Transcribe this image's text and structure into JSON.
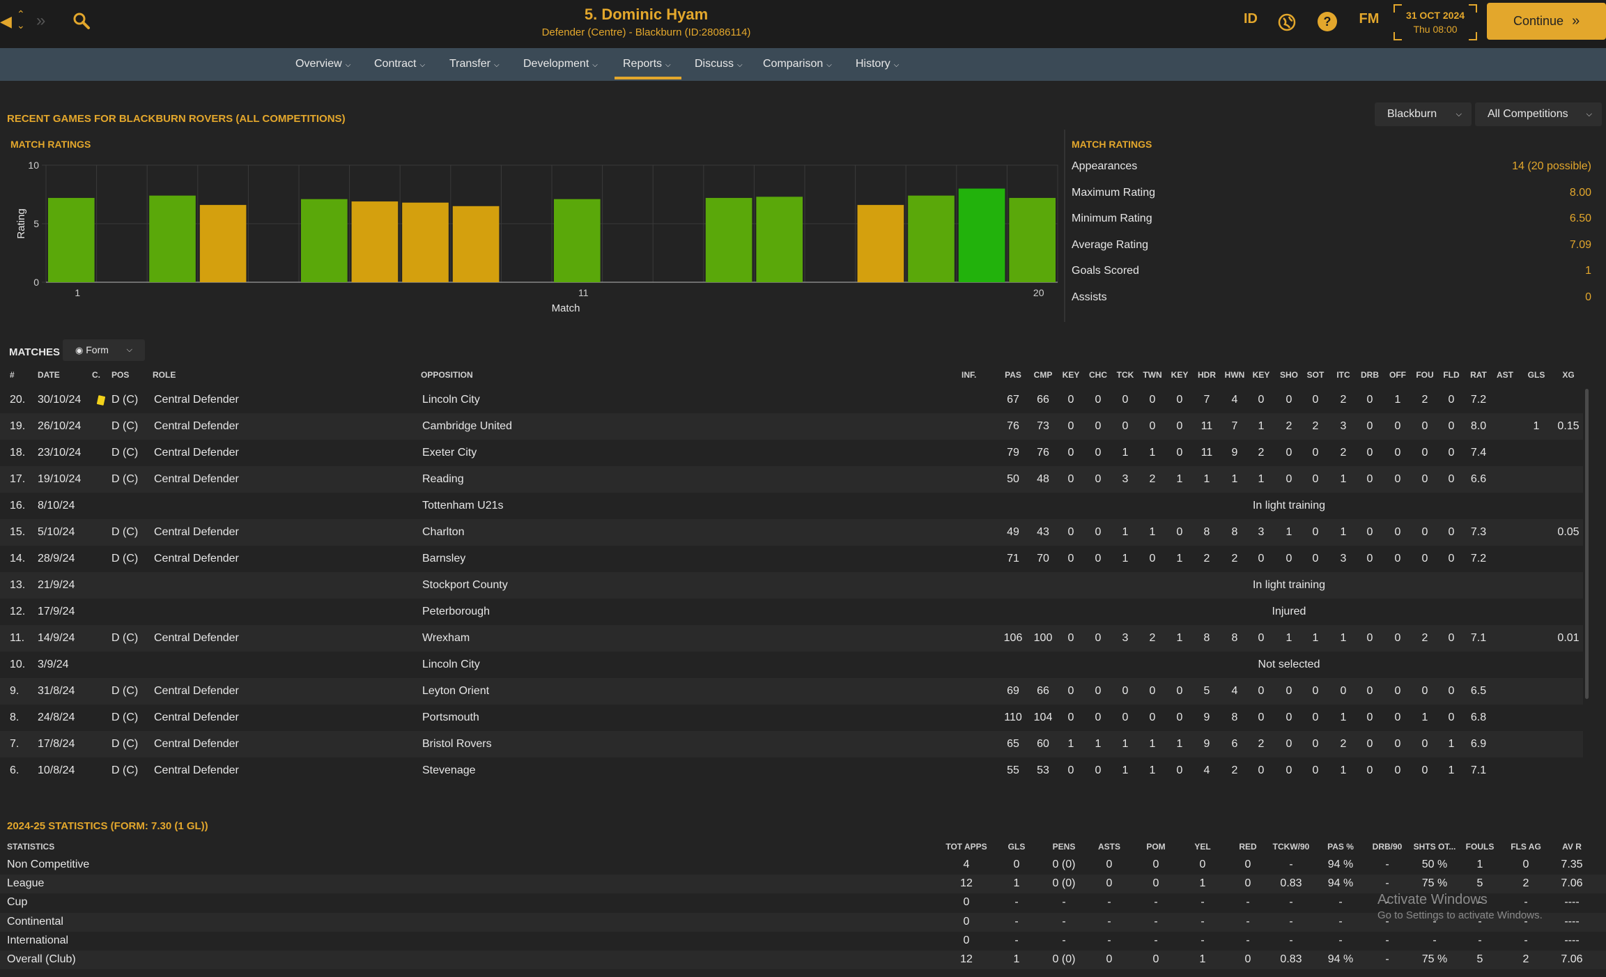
{
  "header": {
    "title": "5. Dominic Hyam",
    "subtitle": "Defender (Centre) - Blackburn (ID:28086114)",
    "date": "31 OCT 2024",
    "time": "Thu 08:00",
    "continue_label": "Continue",
    "id_label": "ID",
    "fm_label": "FM",
    "help_label": "?"
  },
  "nav": [
    "Overview",
    "Contract",
    "Transfer",
    "Development",
    "Reports",
    "Discuss",
    "Comparison",
    "History"
  ],
  "nav_active": "Reports",
  "section_title": "RECENT GAMES FOR BLACKBURN ROVERS (ALL COMPETITIONS)",
  "dropdowns": {
    "club": "Blackburn",
    "competition": "All Competitions"
  },
  "chart_title": "MATCH RATINGS",
  "chart_data": {
    "type": "bar",
    "title": "MATCH RATINGS",
    "xlabel": "Match",
    "ylabel": "Rating",
    "ylim": [
      0,
      10
    ],
    "yticks": [
      0,
      5,
      10
    ],
    "xticks": [
      1,
      11,
      20
    ],
    "x": [
      1,
      2,
      3,
      4,
      5,
      6,
      7,
      8,
      9,
      10,
      11,
      12,
      13,
      14,
      15,
      16,
      17,
      18,
      19,
      20
    ],
    "values": [
      7.2,
      null,
      7.4,
      6.6,
      null,
      7.1,
      6.9,
      6.8,
      6.5,
      null,
      7.1,
      null,
      null,
      7.2,
      7.3,
      null,
      6.6,
      7.4,
      8.0,
      7.2
    ],
    "colors": [
      "#5aa80a",
      null,
      "#5aa80a",
      "#d4a00e",
      null,
      "#5aa80a",
      "#d4a00e",
      "#d4a00e",
      "#d4a00e",
      null,
      "#5aa80a",
      null,
      null,
      "#5aa80a",
      "#5aa80a",
      null,
      "#d4a00e",
      "#5aa80a",
      "#22b20c",
      "#5aa80a"
    ]
  },
  "summary": {
    "title": "MATCH RATINGS",
    "items": [
      {
        "label": "Appearances",
        "value": "14 (20 possible)"
      },
      {
        "label": "Maximum Rating",
        "value": "8.00"
      },
      {
        "label": "Minimum Rating",
        "value": "6.50"
      },
      {
        "label": "Average Rating",
        "value": "7.09"
      },
      {
        "label": "Goals Scored",
        "value": "1"
      },
      {
        "label": "Assists",
        "value": "0"
      }
    ]
  },
  "matches": {
    "title": "MATCHES",
    "view_label": "Form",
    "headers": [
      "#",
      "DATE",
      "C.",
      "POS",
      "ROLE",
      "OPPOSITION",
      "INF.",
      "PAS",
      "CMP",
      "KEY",
      "CHC",
      "TCK",
      "TWN",
      "KEY",
      "HDR",
      "HWN",
      "KEY",
      "SHO",
      "SOT",
      "ITC",
      "DRB",
      "OFF",
      "FOU",
      "FLD",
      "RAT",
      "AST",
      "GLS",
      "XG"
    ],
    "rows": [
      {
        "n": "20.",
        "date": "30/10/24",
        "card": true,
        "pos": "D (C)",
        "role": "Central Defender",
        "opp": "Lincoln City",
        "s": [
          "67",
          "66",
          "0",
          "0",
          "0",
          "0",
          "0",
          "7",
          "4",
          "0",
          "0",
          "0",
          "2",
          "0",
          "1",
          "2",
          "0",
          "7.2",
          "",
          "",
          ""
        ]
      },
      {
        "n": "19.",
        "date": "26/10/24",
        "pos": "D (C)",
        "role": "Central Defender",
        "opp": "Cambridge United",
        "s": [
          "76",
          "73",
          "0",
          "0",
          "0",
          "0",
          "0",
          "11",
          "7",
          "1",
          "2",
          "2",
          "3",
          "0",
          "0",
          "0",
          "0",
          "8.0",
          "",
          "1",
          "0.15"
        ]
      },
      {
        "n": "18.",
        "date": "23/10/24",
        "pos": "D (C)",
        "role": "Central Defender",
        "opp": "Exeter City",
        "s": [
          "79",
          "76",
          "0",
          "0",
          "1",
          "1",
          "0",
          "11",
          "9",
          "2",
          "0",
          "0",
          "2",
          "0",
          "0",
          "0",
          "0",
          "7.4",
          "",
          "",
          ""
        ]
      },
      {
        "n": "17.",
        "date": "19/10/24",
        "pos": "D (C)",
        "role": "Central Defender",
        "opp": "Reading",
        "s": [
          "50",
          "48",
          "0",
          "0",
          "3",
          "2",
          "1",
          "1",
          "1",
          "1",
          "0",
          "0",
          "1",
          "0",
          "0",
          "0",
          "0",
          "6.6",
          "",
          "",
          ""
        ]
      },
      {
        "n": "16.",
        "date": "8/10/24",
        "pos": "",
        "role": "",
        "opp": "Tottenham U21s",
        "note": "In light training"
      },
      {
        "n": "15.",
        "date": "5/10/24",
        "pos": "D (C)",
        "role": "Central Defender",
        "opp": "Charlton",
        "s": [
          "49",
          "43",
          "0",
          "0",
          "1",
          "1",
          "0",
          "8",
          "8",
          "3",
          "1",
          "0",
          "1",
          "0",
          "0",
          "0",
          "0",
          "7.3",
          "",
          "",
          "0.05"
        ]
      },
      {
        "n": "14.",
        "date": "28/9/24",
        "pos": "D (C)",
        "role": "Central Defender",
        "opp": "Barnsley",
        "s": [
          "71",
          "70",
          "0",
          "0",
          "1",
          "0",
          "1",
          "2",
          "2",
          "0",
          "0",
          "0",
          "3",
          "0",
          "0",
          "0",
          "0",
          "7.2",
          "",
          "",
          ""
        ]
      },
      {
        "n": "13.",
        "date": "21/9/24",
        "pos": "",
        "role": "",
        "opp": "Stockport County",
        "note": "In light training"
      },
      {
        "n": "12.",
        "date": "17/9/24",
        "pos": "",
        "role": "",
        "opp": "Peterborough",
        "note": "Injured"
      },
      {
        "n": "11.",
        "date": "14/9/24",
        "pos": "D (C)",
        "role": "Central Defender",
        "opp": "Wrexham",
        "s": [
          "106",
          "100",
          "0",
          "0",
          "3",
          "2",
          "1",
          "8",
          "8",
          "0",
          "1",
          "1",
          "1",
          "0",
          "0",
          "2",
          "0",
          "7.1",
          "",
          "",
          "0.01"
        ]
      },
      {
        "n": "10.",
        "date": "3/9/24",
        "pos": "",
        "role": "",
        "opp": "Lincoln City",
        "note": "Not selected"
      },
      {
        "n": "9.",
        "date": "31/8/24",
        "pos": "D (C)",
        "role": "Central Defender",
        "opp": "Leyton Orient",
        "s": [
          "69",
          "66",
          "0",
          "0",
          "0",
          "0",
          "0",
          "5",
          "4",
          "0",
          "0",
          "0",
          "0",
          "0",
          "0",
          "0",
          "0",
          "6.5",
          "",
          "",
          ""
        ]
      },
      {
        "n": "8.",
        "date": "24/8/24",
        "pos": "D (C)",
        "role": "Central Defender",
        "opp": "Portsmouth",
        "s": [
          "110",
          "104",
          "0",
          "0",
          "0",
          "0",
          "0",
          "9",
          "8",
          "0",
          "0",
          "0",
          "1",
          "0",
          "0",
          "1",
          "0",
          "6.8",
          "",
          "",
          ""
        ]
      },
      {
        "n": "7.",
        "date": "17/8/24",
        "pos": "D (C)",
        "role": "Central Defender",
        "opp": "Bristol Rovers",
        "s": [
          "65",
          "60",
          "1",
          "1",
          "1",
          "1",
          "1",
          "9",
          "6",
          "2",
          "0",
          "0",
          "2",
          "0",
          "0",
          "0",
          "1",
          "6.9",
          "",
          "",
          ""
        ]
      },
      {
        "n": "6.",
        "date": "10/8/24",
        "pos": "D (C)",
        "role": "Central Defender",
        "opp": "Stevenage",
        "s": [
          "55",
          "53",
          "0",
          "0",
          "1",
          "1",
          "0",
          "4",
          "2",
          "0",
          "0",
          "0",
          "1",
          "0",
          "0",
          "0",
          "1",
          "7.1",
          "",
          "",
          ""
        ]
      }
    ]
  },
  "stats": {
    "title": "2024-25 STATISTICS (FORM: 7.30 (1 GL))",
    "headers": [
      "STATISTICS",
      "TOT APPS",
      "GLS",
      "PENS",
      "ASTS",
      "POM",
      "YEL",
      "RED",
      "TCKW/90",
      "PAS %",
      "DRB/90",
      "SHTS OT...",
      "FOULS",
      "FLS AG",
      "AV R"
    ],
    "rows": [
      {
        "label": "Non Competitive",
        "v": [
          "4",
          "0",
          "0 (0)",
          "0",
          "0",
          "0",
          "0",
          "-",
          "94 %",
          "-",
          "50 %",
          "1",
          "0",
          "7.35"
        ]
      },
      {
        "label": "League",
        "v": [
          "12",
          "1",
          "0 (0)",
          "0",
          "0",
          "1",
          "0",
          "0.83",
          "94 %",
          "-",
          "75 %",
          "5",
          "2",
          "7.06"
        ]
      },
      {
        "label": "Cup",
        "v": [
          "0",
          "-",
          "-",
          "-",
          "-",
          "-",
          "-",
          "-",
          "-",
          "-",
          "-",
          "-",
          "-",
          "----"
        ]
      },
      {
        "label": "Continental",
        "v": [
          "0",
          "-",
          "-",
          "-",
          "-",
          "-",
          "-",
          "-",
          "-",
          "-",
          "-",
          "-",
          "-",
          "----"
        ]
      },
      {
        "label": "International",
        "v": [
          "0",
          "-",
          "-",
          "-",
          "-",
          "-",
          "-",
          "-",
          "-",
          "-",
          "-",
          "-",
          "-",
          "----"
        ]
      },
      {
        "label": "Overall (Club)",
        "v": [
          "12",
          "1",
          "0 (0)",
          "0",
          "0",
          "1",
          "0",
          "0.83",
          "94 %",
          "-",
          "75 %",
          "5",
          "2",
          "7.06"
        ]
      }
    ]
  },
  "watermark": {
    "line1": "Activate Windows",
    "line2": "Go to Settings to activate Windows."
  }
}
